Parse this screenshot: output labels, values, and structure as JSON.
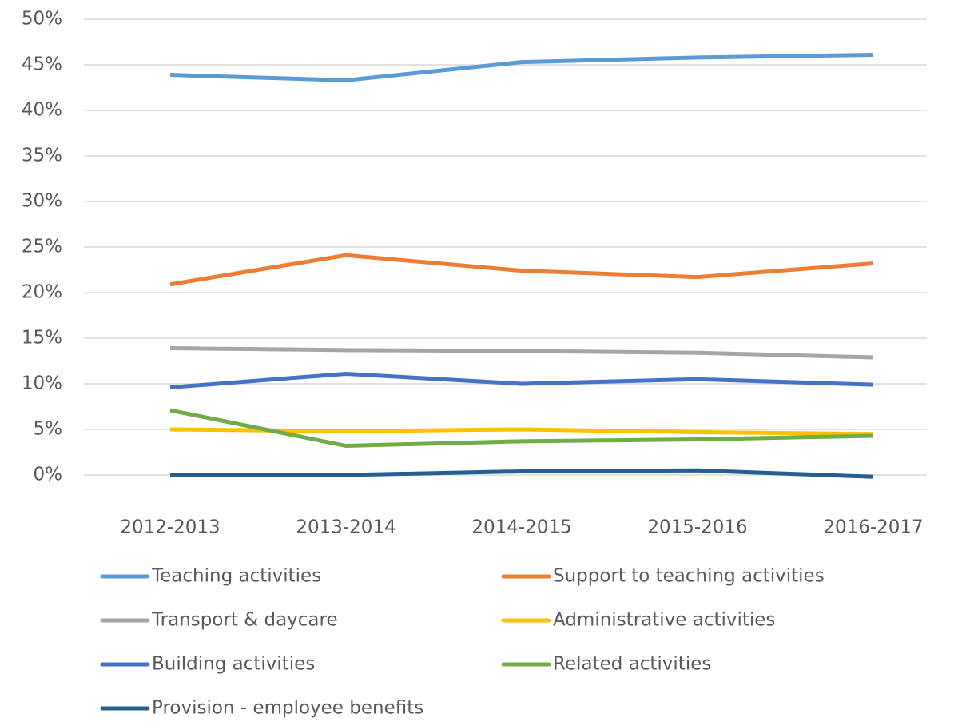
{
  "chart_data": {
    "type": "line",
    "categories": [
      "2012-2013",
      "2013-2014",
      "2014-2015",
      "2015-2016",
      "2016-2017"
    ],
    "series": [
      {
        "name": "Teaching activities",
        "color": "#5b9bd5",
        "values": [
          43.9,
          43.3,
          45.3,
          45.8,
          46.1
        ]
      },
      {
        "name": "Support to teaching activities",
        "color": "#ed7d31",
        "values": [
          20.9,
          24.1,
          22.4,
          21.7,
          23.2
        ]
      },
      {
        "name": "Transport & daycare",
        "color": "#a5a5a5",
        "values": [
          13.9,
          13.7,
          13.6,
          13.4,
          12.9
        ]
      },
      {
        "name": "Administrative activities",
        "color": "#ffc000",
        "values": [
          5.0,
          4.8,
          5.0,
          4.7,
          4.5
        ]
      },
      {
        "name": "Building activities",
        "color": "#4472c4",
        "values": [
          9.6,
          11.1,
          10.0,
          10.5,
          9.9
        ]
      },
      {
        "name": "Related activities",
        "color": "#70ad47",
        "values": [
          7.1,
          3.2,
          3.7,
          3.9,
          4.3
        ]
      },
      {
        "name": "Provision - employee benefits",
        "color": "#255e91",
        "values": [
          0.0,
          0.0,
          0.4,
          0.5,
          -0.2
        ]
      }
    ],
    "ylim": [
      0,
      50
    ],
    "yticks": [
      {
        "value": 0,
        "label": "0%"
      },
      {
        "value": 5,
        "label": "5%"
      },
      {
        "value": 10,
        "label": "10%"
      },
      {
        "value": 15,
        "label": "15%"
      },
      {
        "value": 20,
        "label": "20%"
      },
      {
        "value": 25,
        "label": "25%"
      },
      {
        "value": 30,
        "label": "30%"
      },
      {
        "value": 35,
        "label": "35%"
      },
      {
        "value": 40,
        "label": "40%"
      },
      {
        "value": 45,
        "label": "45%"
      },
      {
        "value": 50,
        "label": "50%"
      }
    ],
    "grid": true,
    "legend": "bottom"
  }
}
